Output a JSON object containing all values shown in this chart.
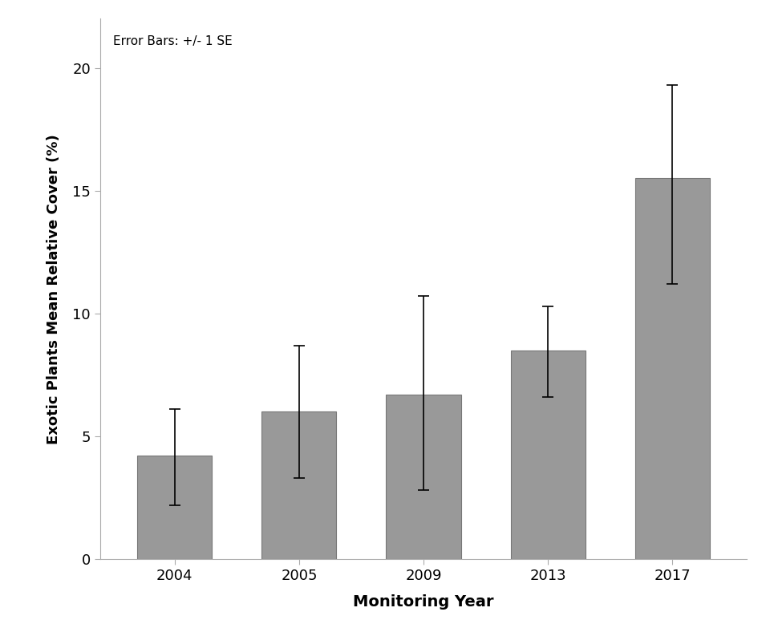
{
  "years": [
    "2004",
    "2005",
    "2009",
    "2013",
    "2017"
  ],
  "values": [
    4.2,
    6.0,
    6.7,
    8.5,
    15.5
  ],
  "error_upper": [
    1.9,
    2.7,
    4.0,
    1.8,
    3.8
  ],
  "error_lower": [
    2.0,
    2.7,
    3.9,
    1.9,
    4.3
  ],
  "bar_color": "#999999",
  "bar_edgecolor": "#777777",
  "xlabel": "Monitoring Year",
  "ylabel": "Exotic Plants Mean Relative Cover (%)",
  "annotation": "Error Bars: +/- 1 SE",
  "ylim": [
    0,
    22
  ],
  "yticks": [
    0,
    5,
    10,
    15,
    20
  ],
  "background_color": "#ffffff",
  "bar_width": 0.6
}
